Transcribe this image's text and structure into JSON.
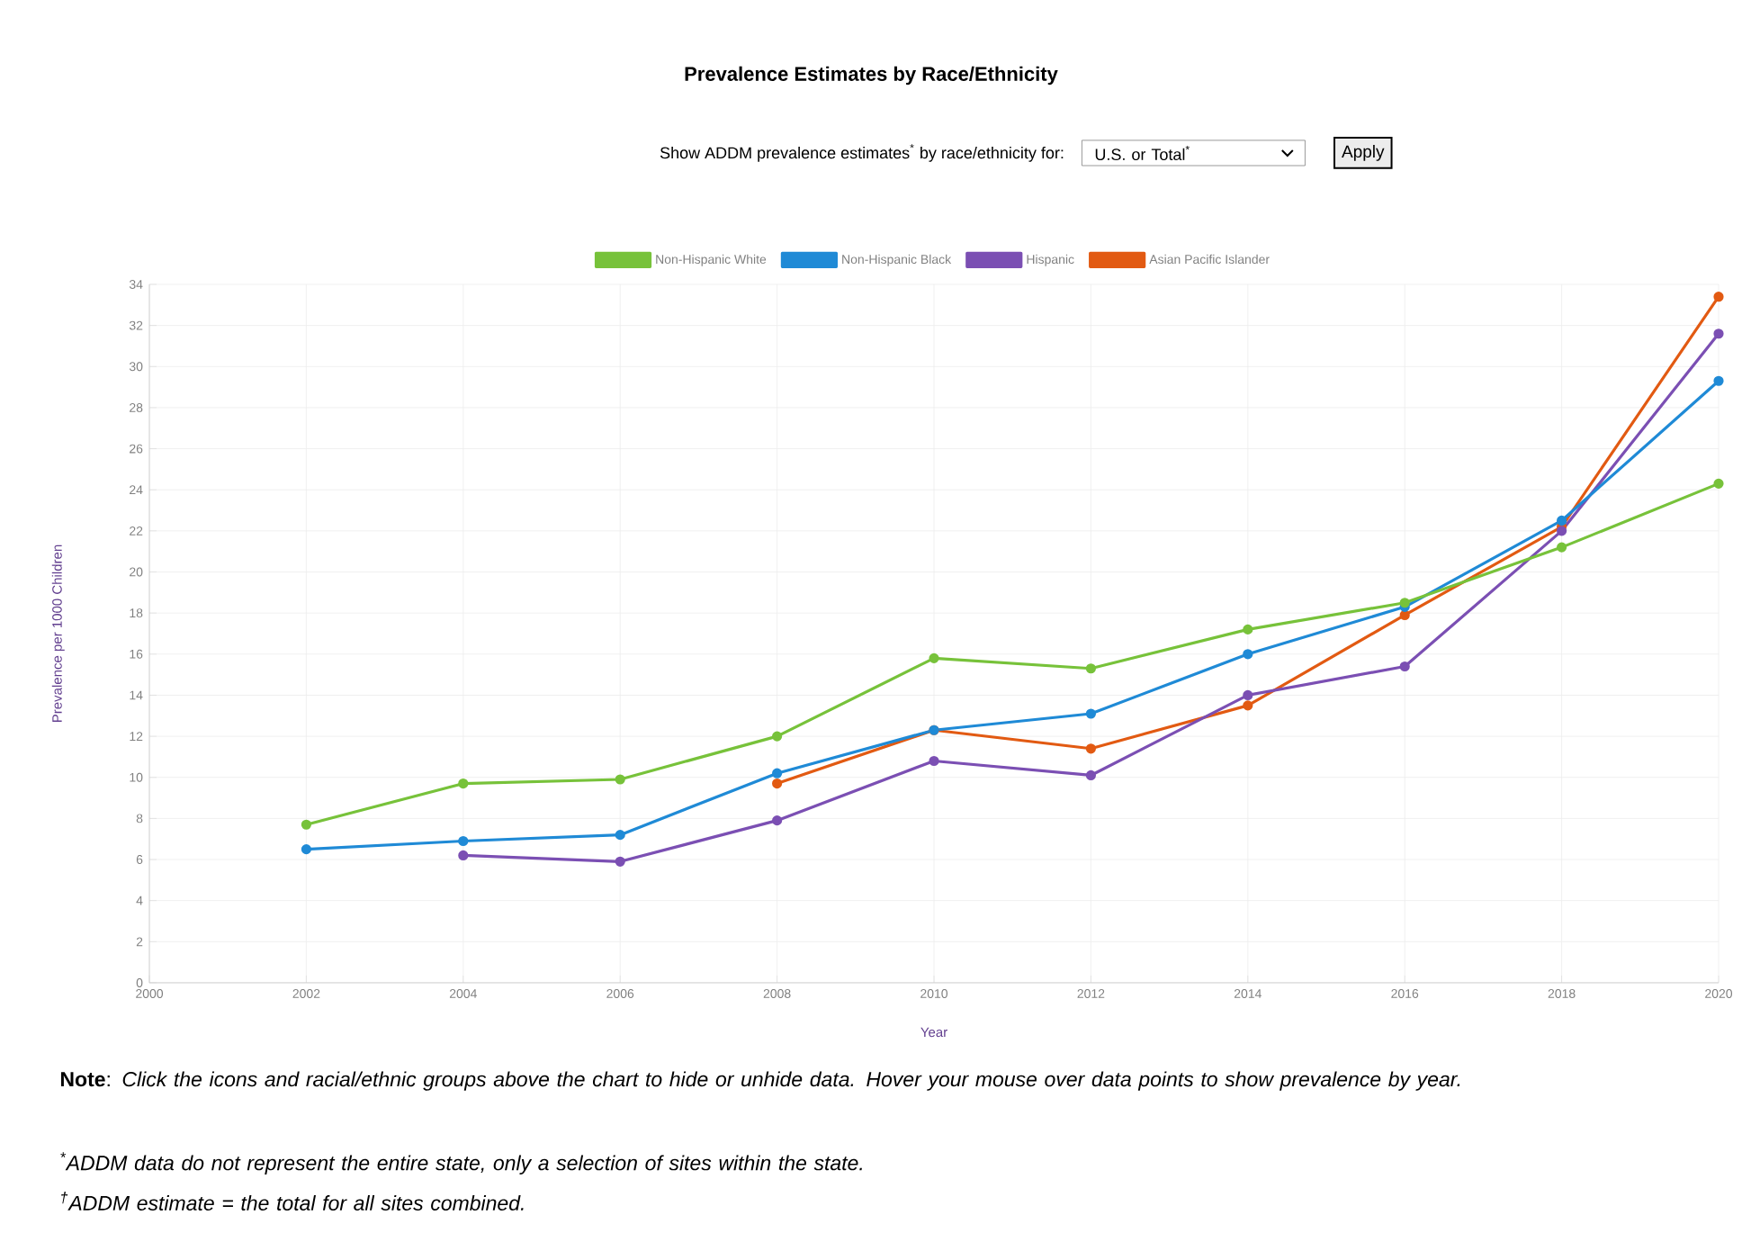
{
  "chart_data": {
    "type": "line",
    "title": "Prevalence Estimates by Race/Ethnicity",
    "xlabel": "Year",
    "ylabel": "Prevalence per 1000 Children",
    "x": [
      2002,
      2004,
      2006,
      2008,
      2010,
      2012,
      2014,
      2016,
      2018,
      2020
    ],
    "series": [
      {
        "name": "Non-Hispanic White",
        "color": "#77c23a",
        "values": [
          7.7,
          9.7,
          9.9,
          12.0,
          15.8,
          15.3,
          17.2,
          18.5,
          21.2,
          24.3
        ]
      },
      {
        "name": "Non-Hispanic Black",
        "color": "#1f8ad6",
        "values": [
          6.5,
          6.9,
          7.2,
          10.2,
          12.3,
          13.1,
          16.0,
          18.3,
          22.5,
          29.3
        ]
      },
      {
        "name": "Hispanic",
        "color": "#7b4fb3",
        "values": [
          null,
          6.2,
          5.9,
          7.9,
          10.8,
          10.1,
          14.0,
          15.4,
          22.0,
          31.6
        ]
      },
      {
        "name": "Asian Pacific Islander",
        "color": "#e25a12",
        "values": [
          null,
          null,
          null,
          9.7,
          12.3,
          11.4,
          13.5,
          17.9,
          22.2,
          33.4
        ]
      }
    ],
    "xlim": [
      2000,
      2020
    ],
    "xticks": [
      2000,
      2002,
      2004,
      2006,
      2008,
      2010,
      2012,
      2014,
      2016,
      2018,
      2020
    ],
    "ylim": [
      0,
      34
    ],
    "yticks": [
      0,
      2,
      4,
      6,
      8,
      10,
      12,
      14,
      16,
      18,
      20,
      22,
      24,
      26,
      28,
      30,
      32,
      34
    ],
    "grid": true,
    "legend": "top",
    "marker": "circle",
    "line_style": "solid",
    "annotations": [
      "Show ADDM prevalence estimates$^{*}$ by race/ethnicity for:",
      "U.S. or Total$^{*}$",
      "Apply",
      "**Note**: *Click the icons and racial/ethnic groups above the chart to hide or unhide data. Hover your mouse over data points to show prevalence by year.*",
      "$^{*}$ADDM data do not represent the entire state, only a selection of sites within the state.",
      "$^{†}$ADDM estimate = the total for all sites combined."
    ]
  }
}
